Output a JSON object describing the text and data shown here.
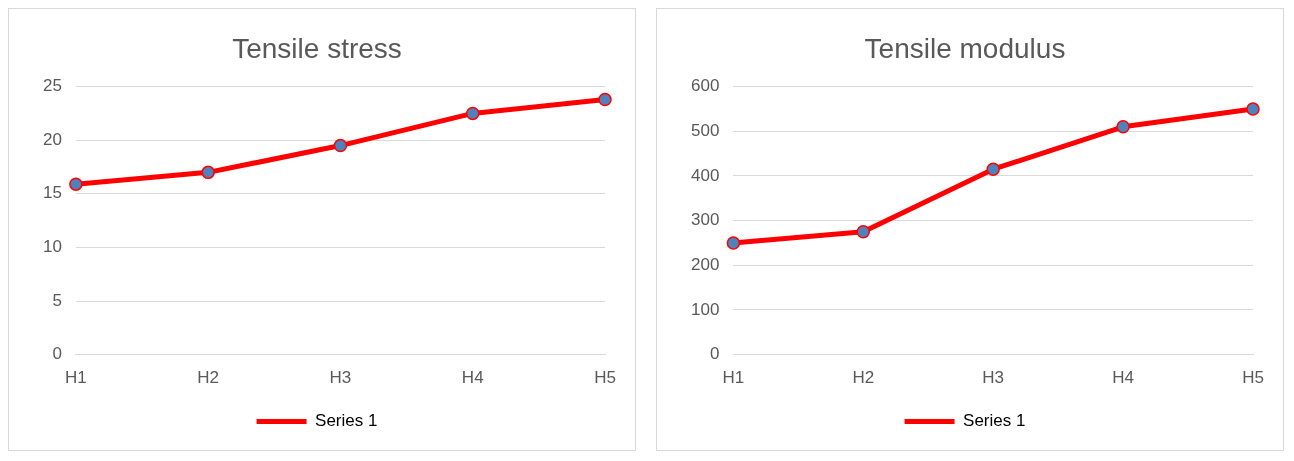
{
  "chart_data": [
    {
      "type": "line",
      "title": "Tensile stress",
      "categories": [
        "H1",
        "H2",
        "H3",
        "H4",
        "H5"
      ],
      "series": [
        {
          "name": "Series 1",
          "color": "#ff0000",
          "values": [
            15.9,
            17,
            19.5,
            22.5,
            23.8
          ]
        }
      ],
      "ylim": [
        0,
        25
      ],
      "yticks": [
        0,
        5,
        10,
        15,
        20,
        25
      ],
      "grid": "y",
      "legend": "bottom",
      "marker": "circle"
    },
    {
      "type": "line",
      "title": "Tensile modulus",
      "categories": [
        "H1",
        "H2",
        "H3",
        "H4",
        "H5"
      ],
      "series": [
        {
          "name": "Series 1",
          "color": "#ff0000",
          "values": [
            250,
            275,
            415,
            510,
            550
          ]
        }
      ],
      "ylim": [
        0,
        600
      ],
      "yticks": [
        0,
        100,
        200,
        300,
        400,
        500,
        600
      ],
      "grid": "y",
      "legend": "bottom",
      "marker": "circle"
    }
  ]
}
